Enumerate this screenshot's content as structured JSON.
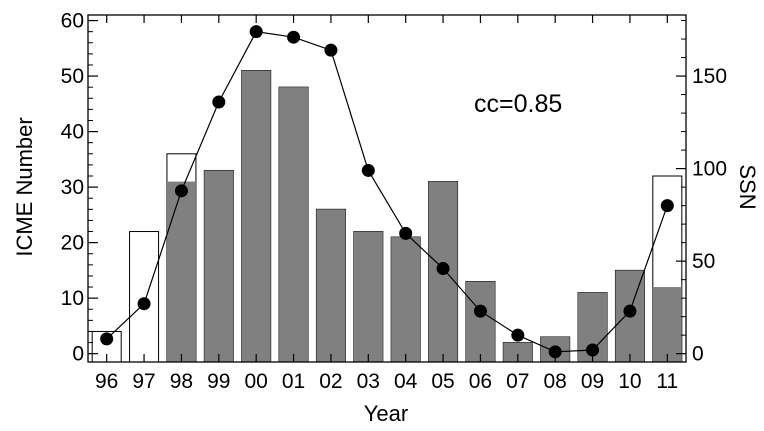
{
  "chart_data": {
    "type": "bar",
    "categories": [
      "96",
      "97",
      "98",
      "99",
      "00",
      "01",
      "02",
      "03",
      "04",
      "05",
      "06",
      "07",
      "08",
      "09",
      "10",
      "11"
    ],
    "series": [
      {
        "values": [
          4,
          22,
          36,
          33,
          51,
          48,
          26,
          22,
          21,
          31,
          13,
          2,
          3,
          11,
          15,
          32
        ]
      },
      {
        "values": [
          4,
          22,
          31,
          33,
          51,
          48,
          26,
          22,
          21,
          31,
          13,
          2,
          3,
          11,
          15,
          12
        ]
      },
      {
        "values": [
          8,
          27,
          88,
          136,
          174,
          171,
          164,
          99,
          65,
          46,
          23,
          10,
          1,
          2,
          23,
          80
        ]
      }
    ],
    "xlabel": "Year",
    "ylabel": "ICME Number",
    "y2label": "SSN",
    "ylim": [
      -1.5,
      61
    ],
    "y2lim": [
      -4.5,
      183
    ],
    "yticks": [
      0,
      10,
      20,
      30,
      40,
      50,
      60
    ],
    "y2ticks": [
      0,
      50,
      100,
      150
    ],
    "annotation": "cc=0.85",
    "grid": false,
    "colors": {
      "filled_bar": "#808080",
      "outline_bar": "#ffffff",
      "line": "#000000",
      "marker": "#000000"
    }
  }
}
